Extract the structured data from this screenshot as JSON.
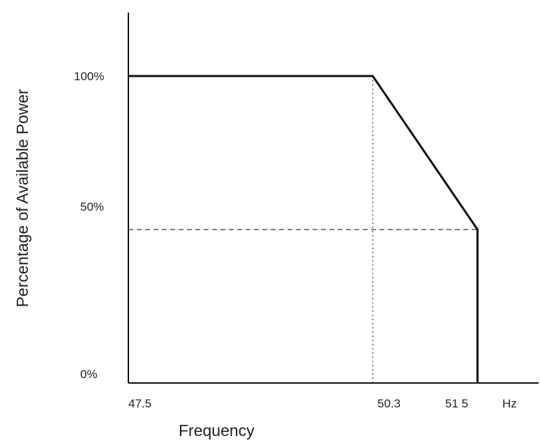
{
  "chart_data": {
    "type": "line",
    "title": "",
    "xlabel": "Frequency",
    "ylabel": "Percentage of Available Power",
    "x_unit": "Hz",
    "xlim": [
      47.5,
      52.2
    ],
    "ylim": [
      0,
      100
    ],
    "x_ticks": [
      "47.5",
      "50.3",
      "51 5"
    ],
    "y_ticks": [
      "0%",
      "50%",
      "100%"
    ],
    "x_tick_values": [
      47.5,
      50.3,
      51.5
    ],
    "y_tick_values": [
      0,
      50,
      100
    ],
    "grid": false,
    "legend": "none",
    "series": [
      {
        "x": [
          47.5,
          50.3,
          51.5,
          51.5
        ],
        "y": [
          100,
          100,
          50,
          0
        ],
        "color": "#111111"
      }
    ],
    "reference_lines": [
      {
        "style": "dotted",
        "x": [
          50.3,
          50.3
        ],
        "y": [
          100,
          0
        ]
      },
      {
        "style": "dashed",
        "x": [
          47.5,
          51.5
        ],
        "y": [
          50,
          50
        ]
      }
    ]
  }
}
